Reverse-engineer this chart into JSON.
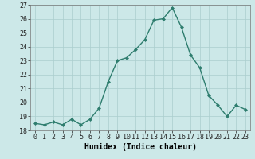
{
  "x": [
    0,
    1,
    2,
    3,
    4,
    5,
    6,
    7,
    8,
    9,
    10,
    11,
    12,
    13,
    14,
    15,
    16,
    17,
    18,
    19,
    20,
    21,
    22,
    23
  ],
  "y": [
    18.5,
    18.4,
    18.6,
    18.4,
    18.8,
    18.4,
    18.8,
    19.6,
    21.5,
    23.0,
    23.2,
    23.8,
    24.5,
    25.9,
    26.0,
    26.8,
    25.4,
    23.4,
    22.5,
    20.5,
    19.8,
    19.0,
    19.8,
    19.5
  ],
  "line_color": "#2e7d6e",
  "marker": "D",
  "marker_size": 2.0,
  "line_width": 1.0,
  "xlabel": "Humidex (Indice chaleur)",
  "xlim": [
    -0.5,
    23.5
  ],
  "ylim": [
    18,
    27
  ],
  "yticks": [
    18,
    19,
    20,
    21,
    22,
    23,
    24,
    25,
    26,
    27
  ],
  "xticks": [
    0,
    1,
    2,
    3,
    4,
    5,
    6,
    7,
    8,
    9,
    10,
    11,
    12,
    13,
    14,
    15,
    16,
    17,
    18,
    19,
    20,
    21,
    22,
    23
  ],
  "bg_color": "#cce8e8",
  "grid_color": "#aacece",
  "xlabel_fontsize": 7,
  "tick_fontsize": 6
}
